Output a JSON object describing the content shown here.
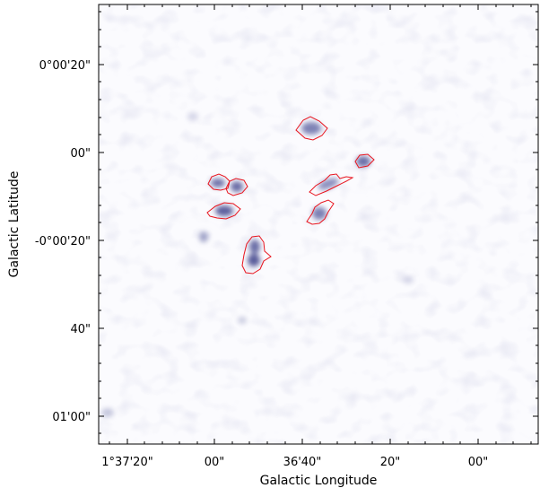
{
  "x_axis": {
    "label": "Galactic Longitude",
    "ticks": [
      "1°37'20\"",
      "00\"",
      "36'40\"",
      "20\"",
      "00\""
    ]
  },
  "y_axis": {
    "label": "Galactic Latitude",
    "ticks": [
      "0°00'20\"",
      "00\"",
      "-0°00'20\"",
      "40\"",
      "01'00\""
    ]
  },
  "colors": {
    "colormap_high": "#4a4c8c",
    "colormap_low": "#ffffff",
    "contour": "#e8141e"
  },
  "image": {
    "type": "intensity map",
    "contour_count": 8
  }
}
